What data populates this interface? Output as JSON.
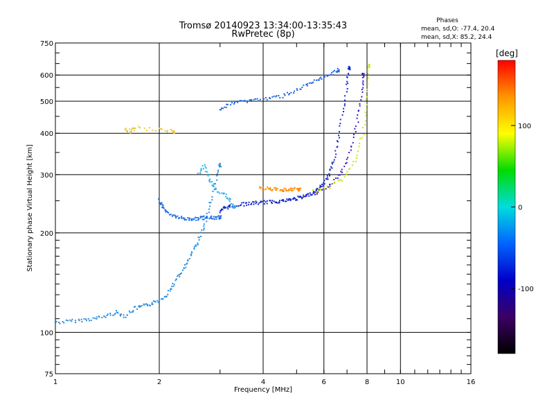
{
  "chart_data": {
    "type": "scatter",
    "title": "Tromsø 20140923 13:34:00-13:35:43",
    "subtitle": "RwPretec (8p)",
    "xlabel": "Frequency [MHz]",
    "ylabel": "Stationary phase Virtual Height [km]",
    "x_scale": "log",
    "y_scale": "log",
    "xlim": [
      1,
      16
    ],
    "ylim": [
      75,
      750
    ],
    "x_ticks": [
      "1",
      "2",
      "4",
      "6",
      "8",
      "10",
      "16"
    ],
    "y_ticks": [
      "75",
      "100",
      "200",
      "300",
      "400",
      "500",
      "600",
      "750"
    ],
    "grid": true,
    "phases_box": {
      "heading": "Phases",
      "line_o": "mean, sd,O: -77.4, 20.4",
      "line_x": "mean, sd,X:  85.2, 24.4"
    },
    "colorbar": {
      "label": "[deg]",
      "range": [
        -180,
        180
      ],
      "ticks": [
        "100",
        "0",
        "-100"
      ],
      "colors": [
        "#000000",
        "#3c0064",
        "#0000c8",
        "#0064ff",
        "#00dcdc",
        "#00dc00",
        "#ffff00",
        "#ff9600",
        "#ff0000"
      ]
    },
    "series": [
      {
        "color": "#2a8cdc",
        "phase": -95,
        "points": [
          [
            1.0,
            107
          ],
          [
            1.1,
            108
          ],
          [
            1.2,
            109
          ],
          [
            1.3,
            110
          ],
          [
            1.4,
            112
          ],
          [
            1.5,
            115
          ],
          [
            1.6,
            112
          ],
          [
            1.7,
            118
          ],
          [
            1.8,
            120
          ],
          [
            1.9,
            122
          ],
          [
            2.0,
            125
          ],
          [
            2.1,
            130
          ],
          [
            2.2,
            140
          ],
          [
            2.3,
            150
          ],
          [
            2.4,
            160
          ],
          [
            2.5,
            175
          ],
          [
            2.6,
            190
          ],
          [
            2.7,
            210
          ],
          [
            2.8,
            240
          ],
          [
            2.9,
            280
          ],
          [
            3.0,
            320
          ]
        ]
      },
      {
        "color": "#1e6ee6",
        "phase": -100,
        "points": [
          [
            2.0,
            250
          ],
          [
            2.05,
            240
          ],
          [
            2.1,
            232
          ],
          [
            2.2,
            225
          ],
          [
            2.3,
            222
          ],
          [
            2.4,
            220
          ],
          [
            2.5,
            220
          ],
          [
            2.6,
            221
          ],
          [
            2.7,
            222
          ],
          [
            2.8,
            222
          ],
          [
            2.9,
            222
          ],
          [
            3.0,
            223
          ]
        ]
      },
      {
        "color": "#1428c8",
        "phase": -110,
        "points": [
          [
            3.0,
            230
          ],
          [
            3.1,
            238
          ],
          [
            3.2,
            240
          ],
          [
            3.4,
            243
          ],
          [
            3.6,
            245
          ],
          [
            3.8,
            246
          ],
          [
            4.0,
            247
          ],
          [
            4.2,
            248
          ],
          [
            4.4,
            249
          ],
          [
            4.6,
            250
          ],
          [
            4.8,
            252
          ],
          [
            5.0,
            254
          ],
          [
            5.2,
            256
          ],
          [
            5.4,
            260
          ],
          [
            5.6,
            265
          ],
          [
            5.8,
            272
          ],
          [
            6.0,
            282
          ],
          [
            6.2,
            300
          ],
          [
            6.4,
            330
          ],
          [
            6.6,
            380
          ],
          [
            6.8,
            460
          ],
          [
            7.0,
            560
          ],
          [
            7.1,
            630
          ]
        ]
      },
      {
        "color": "#3c14c8",
        "phase": -115,
        "points": [
          [
            5.6,
            262
          ],
          [
            6.0,
            270
          ],
          [
            6.4,
            285
          ],
          [
            6.8,
            310
          ],
          [
            7.2,
            360
          ],
          [
            7.5,
            430
          ],
          [
            7.7,
            520
          ],
          [
            7.8,
            600
          ]
        ]
      },
      {
        "color": "#ff8c00",
        "phase": 120,
        "points": [
          [
            3.9,
            272
          ],
          [
            4.1,
            272
          ],
          [
            4.3,
            271
          ],
          [
            4.5,
            270
          ],
          [
            4.7,
            270
          ],
          [
            4.9,
            271
          ],
          [
            5.1,
            270
          ]
        ]
      },
      {
        "color": "#c8e600",
        "phase": 85,
        "points": [
          [
            5.6,
            268
          ],
          [
            6.2,
            275
          ],
          [
            6.8,
            290
          ],
          [
            7.4,
            330
          ],
          [
            7.8,
            400
          ],
          [
            8.0,
            500
          ],
          [
            8.1,
            640
          ]
        ]
      },
      {
        "color": "#1e64dc",
        "phase": -100,
        "points": [
          [
            3.0,
            470
          ],
          [
            3.2,
            490
          ],
          [
            3.5,
            500
          ],
          [
            3.8,
            505
          ],
          [
            4.2,
            510
          ],
          [
            4.6,
            520
          ],
          [
            5.0,
            540
          ],
          [
            5.4,
            560
          ],
          [
            5.8,
            580
          ],
          [
            6.2,
            600
          ],
          [
            6.6,
            620
          ]
        ]
      },
      {
        "color": "#28b4e6",
        "phase": -80,
        "points": [
          [
            2.6,
            300
          ],
          [
            2.7,
            320
          ],
          [
            2.8,
            290
          ],
          [
            2.9,
            270
          ],
          [
            3.1,
            260
          ],
          [
            3.2,
            250
          ],
          [
            3.3,
            240
          ]
        ]
      },
      {
        "color": "#e6c83c",
        "phase": 100,
        "points": [
          [
            1.6,
            410
          ],
          [
            1.65,
            405
          ],
          [
            1.7,
            415
          ],
          [
            2.0,
            410
          ],
          [
            2.2,
            405
          ]
        ]
      }
    ]
  }
}
